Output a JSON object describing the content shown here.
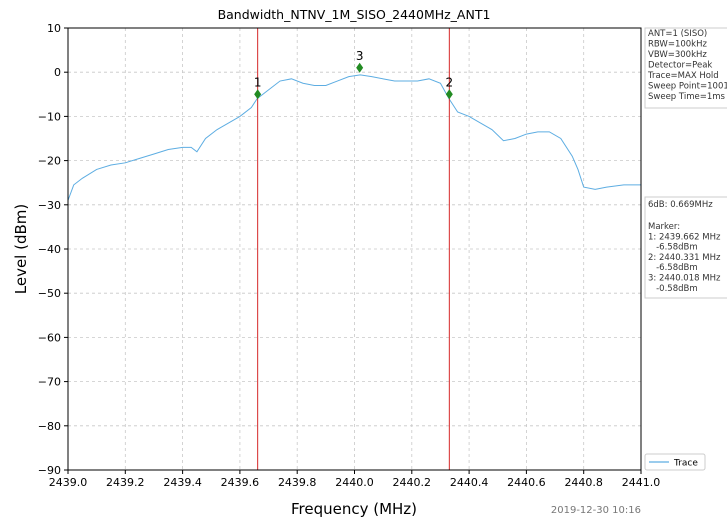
{
  "chart_data": {
    "type": "line",
    "title": "Bandwidth_NTNV_1M_SISO_2440MHz_ANT1",
    "x_label": "Frequency (MHz)",
    "y_label": "Level (dBm)",
    "xlim": [
      2439.0,
      2441.0
    ],
    "ylim": [
      -90,
      10
    ],
    "xticks": [
      {
        "value": 2439.0,
        "label": "2439.0"
      },
      {
        "value": 2439.2,
        "label": "2439.2"
      },
      {
        "value": 2439.4,
        "label": "2439.4"
      },
      {
        "value": 2439.6,
        "label": "2439.6"
      },
      {
        "value": 2439.8,
        "label": "2439.8"
      },
      {
        "value": 2440.0,
        "label": "2440.0"
      },
      {
        "value": 2440.2,
        "label": "2440.2"
      },
      {
        "value": 2440.4,
        "label": "2440.4"
      },
      {
        "value": 2440.6,
        "label": "2440.6"
      },
      {
        "value": 2440.8,
        "label": "2440.8"
      },
      {
        "value": 2441.0,
        "label": "2441.0"
      }
    ],
    "yticks": [
      {
        "value": -90,
        "label": "−90"
      },
      {
        "value": -80,
        "label": "−80"
      },
      {
        "value": -70,
        "label": "−70"
      },
      {
        "value": -60,
        "label": "−60"
      },
      {
        "value": -50,
        "label": "−50"
      },
      {
        "value": -40,
        "label": "−40"
      },
      {
        "value": -30,
        "label": "−30"
      },
      {
        "value": -20,
        "label": "−20"
      },
      {
        "value": -10,
        "label": "−10"
      },
      0,
      10
    ],
    "grid": true,
    "legend": "lower right",
    "series": [
      {
        "name": "Trace",
        "color": "#5dade2",
        "x": [
          2439.0,
          2439.02,
          2439.05,
          2439.1,
          2439.15,
          2439.2,
          2439.25,
          2439.3,
          2439.35,
          2439.4,
          2439.43,
          2439.45,
          2439.48,
          2439.52,
          2439.56,
          2439.6,
          2439.64,
          2439.66,
          2439.7,
          2439.74,
          2439.78,
          2439.82,
          2439.86,
          2439.9,
          2439.94,
          2439.98,
          2440.02,
          2440.06,
          2440.1,
          2440.14,
          2440.18,
          2440.22,
          2440.26,
          2440.3,
          2440.33,
          2440.36,
          2440.4,
          2440.44,
          2440.48,
          2440.52,
          2440.56,
          2440.6,
          2440.64,
          2440.68,
          2440.72,
          2440.76,
          2440.78,
          2440.8,
          2440.84,
          2440.88,
          2440.94,
          2441.0
        ],
        "values": [
          -29,
          -25.5,
          -24,
          -22,
          -21,
          -20.5,
          -19.5,
          -18.5,
          -17.5,
          -17,
          -17,
          -18,
          -15,
          -13,
          -11.5,
          -10,
          -8,
          -6,
          -4,
          -2,
          -1.5,
          -2.5,
          -3,
          -3,
          -2,
          -1,
          -0.6,
          -1,
          -1.5,
          -2,
          -2,
          -2,
          -1.5,
          -2.5,
          -6,
          -9,
          -10,
          -11.5,
          -13,
          -15.5,
          -15,
          -14,
          -13.5,
          -13.5,
          -15,
          -19,
          -22,
          -26,
          -26.5,
          -26,
          -25.5,
          -25.5
        ]
      }
    ],
    "vlines": [
      2439.662,
      2440.331
    ],
    "vline_color": "#d62728",
    "marker_color": "#228b22",
    "markers": [
      {
        "label": "1",
        "x": 2439.662,
        "y": -5
      },
      {
        "label": "2",
        "x": 2440.331,
        "y": -5
      },
      {
        "label": "3",
        "x": 2440.018,
        "y": 1
      }
    ],
    "info_box": [
      "ANT=1 (SISO)",
      "RBW=100kHz",
      "VBW=300kHz",
      "Detector=Peak",
      "Trace=MAX Hold",
      "Sweep Point=1001",
      "Sweep Time=1ms"
    ],
    "bandwidth_text": "6dB: 0.669MHz",
    "marker_box": [
      "Marker:",
      "1: 2439.662 MHz",
      "   -6.58dBm",
      "2: 2440.331 MHz",
      "   -6.58dBm",
      "3: 2440.018 MHz",
      "   -0.58dBm"
    ],
    "timestamp": "2019-12-30 10:16"
  }
}
